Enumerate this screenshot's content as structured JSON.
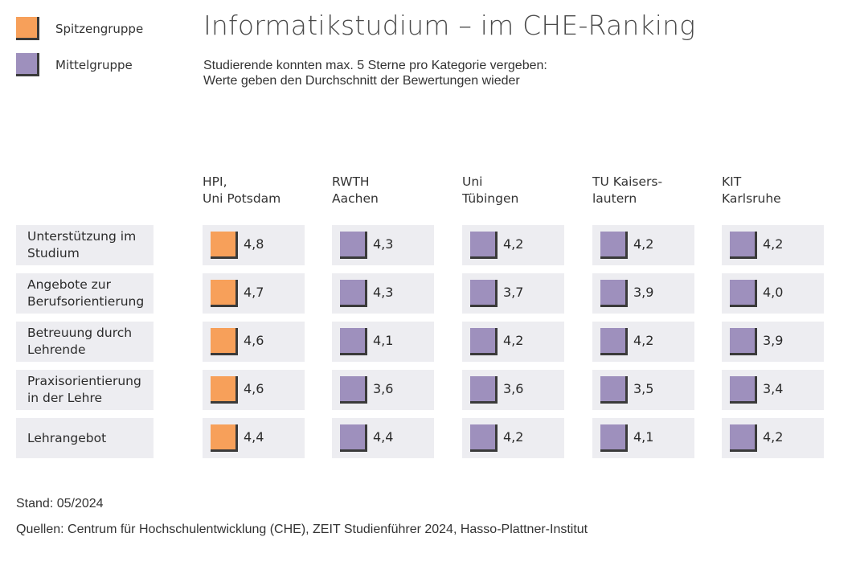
{
  "legend": [
    {
      "label": "Spitzengruppe",
      "color": "#f7a05a"
    },
    {
      "label": "Mittelgruppe",
      "color": "#9e90bd"
    }
  ],
  "title": "Informatikstudium – im CHE-Ranking",
  "subtitle": [
    "Studierende konnten max. 5 Sterne pro Kategorie vergeben:",
    "Werte geben den Durchschnitt der Bewertungen wieder"
  ],
  "footer": {
    "stand": "Stand: 05/2024",
    "sources": "Quellen: Centrum für Hochschulentwicklung (CHE), ZEIT Studienführer 2024, Hasso-Plattner-Institut"
  },
  "chart_data": {
    "type": "table",
    "columns": [
      {
        "lines": [
          "HPI,",
          "Uni Potsdam"
        ]
      },
      {
        "lines": [
          "RWTH",
          "Aachen"
        ]
      },
      {
        "lines": [
          "Uni",
          "Tübingen"
        ]
      },
      {
        "lines": [
          "TU Kaisers-",
          "lautern"
        ]
      },
      {
        "lines": [
          "KIT",
          "Karlsruhe"
        ]
      }
    ],
    "rows": [
      {
        "lines": [
          "Unterstützung im",
          "Studium"
        ],
        "values": [
          "4,8",
          "4,3",
          "4,2",
          "4,2",
          "4,2"
        ],
        "groups": [
          "Spitzengruppe",
          "Mittelgruppe",
          "Mittelgruppe",
          "Mittelgruppe",
          "Mittelgruppe"
        ]
      },
      {
        "lines": [
          "Angebote zur",
          "Berufsorientierung"
        ],
        "values": [
          "4,7",
          "4,3",
          "3,7",
          "3,9",
          "4,0"
        ],
        "groups": [
          "Spitzengruppe",
          "Mittelgruppe",
          "Mittelgruppe",
          "Mittelgruppe",
          "Mittelgruppe"
        ]
      },
      {
        "lines": [
          "Betreuung durch",
          "Lehrende"
        ],
        "values": [
          "4,6",
          "4,1",
          "4,2",
          "4,2",
          "3,9"
        ],
        "groups": [
          "Spitzengruppe",
          "Mittelgruppe",
          "Mittelgruppe",
          "Mittelgruppe",
          "Mittelgruppe"
        ]
      },
      {
        "lines": [
          "Praxisorientierung",
          "in der Lehre"
        ],
        "values": [
          "4,6",
          "3,6",
          "3,6",
          "3,5",
          "3,4"
        ],
        "groups": [
          "Spitzengruppe",
          "Mittelgruppe",
          "Mittelgruppe",
          "Mittelgruppe",
          "Mittelgruppe"
        ]
      },
      {
        "lines": [
          "Lehrangebot"
        ],
        "values": [
          "4,4",
          "4,4",
          "4,2",
          "4,1",
          "4,2"
        ],
        "groups": [
          "Spitzengruppe",
          "Mittelgruppe",
          "Mittelgruppe",
          "Mittelgruppe",
          "Mittelgruppe"
        ]
      }
    ]
  }
}
